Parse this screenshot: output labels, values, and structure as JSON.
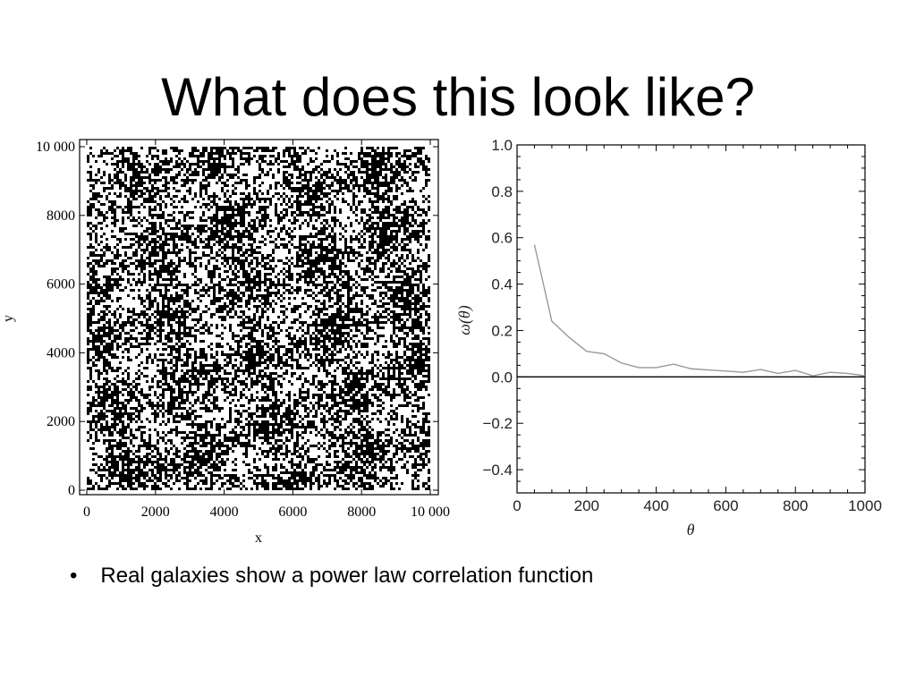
{
  "slide": {
    "title": "What does this look like?",
    "bullet_marker": "•",
    "bullet_text": "Real galaxies show a power law correlation function"
  },
  "chart_data": [
    {
      "type": "scatter",
      "title": "",
      "xlabel": "x",
      "ylabel": "y",
      "xlim": [
        0,
        10000
      ],
      "ylim": [
        0,
        10000
      ],
      "x_ticks": [
        "0",
        "2000",
        "4000",
        "6000",
        "8000",
        "10 000"
      ],
      "y_ticks": [
        "0",
        "2000",
        "4000",
        "6000",
        "8000",
        "10 000"
      ],
      "x_tick_values": [
        0,
        2000,
        4000,
        6000,
        8000,
        10000
      ],
      "y_tick_values": [
        0,
        2000,
        4000,
        6000,
        8000,
        10000
      ],
      "point_color": "#000000",
      "note": "dense uniform random field of points filling the square"
    },
    {
      "type": "line",
      "title": "",
      "xlabel": "θ",
      "ylabel": "ω(θ)",
      "xlim": [
        0,
        1000
      ],
      "ylim": [
        -0.5,
        1.0
      ],
      "x_ticks": [
        "0",
        "200",
        "400",
        "600",
        "800",
        "1000"
      ],
      "y_ticks": [
        "1.0",
        "0.8",
        "0.6",
        "0.4",
        "0.2",
        "0.0",
        "−0.2",
        "−0.4"
      ],
      "x_tick_values": [
        0,
        200,
        400,
        600,
        800,
        1000
      ],
      "y_tick_values": [
        1.0,
        0.8,
        0.6,
        0.4,
        0.2,
        0.0,
        -0.2,
        -0.4
      ],
      "series": [
        {
          "color": "#999999",
          "x": [
            50,
            100,
            150,
            200,
            250,
            300,
            350,
            400,
            450,
            500,
            550,
            600,
            650,
            700,
            750,
            800,
            850,
            900,
            950,
            1000
          ],
          "y": [
            0.57,
            0.24,
            0.17,
            0.11,
            0.1,
            0.06,
            0.04,
            0.04,
            0.055,
            0.035,
            0.03,
            0.025,
            0.02,
            0.032,
            0.015,
            0.028,
            0.005,
            0.02,
            0.015,
            0.005
          ]
        }
      ],
      "reference_line": {
        "y": 0.0,
        "color": "#000000"
      }
    }
  ]
}
